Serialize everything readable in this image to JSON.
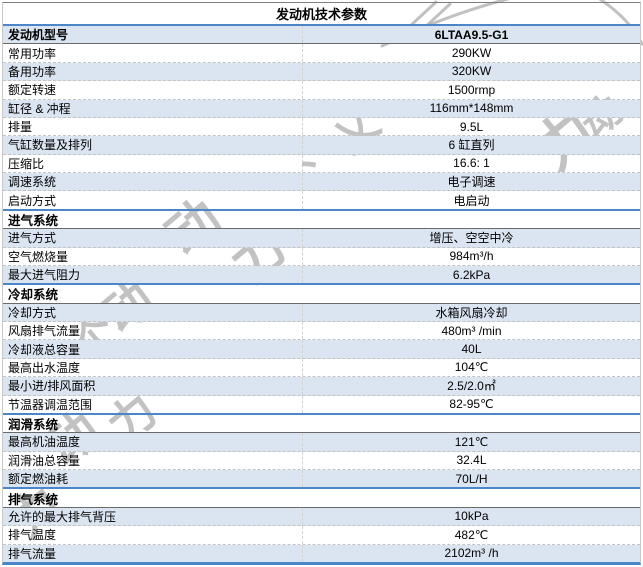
{
  "page": {
    "title": "发动机技术参数"
  },
  "colors": {
    "row_alt_bg": "#dbe5f1",
    "accent_line": "#4a86c8",
    "dashed_separator": "#c3c3c3",
    "watermark_gray": "#9e9e9e",
    "text": "#000000"
  },
  "watermark": {
    "text_fragments": [
      "动",
      "力",
      "个",
      "、",
      "乂"
    ],
    "has_circle_arc": true
  },
  "table": {
    "sections": [
      {
        "header": null,
        "rows": [
          {
            "label": "发动机型号",
            "value": "6LTAA9.5-G1",
            "emphasis": true
          },
          {
            "label": "常用功率",
            "value": "290KW"
          },
          {
            "label": "备用功率",
            "value": "320KW"
          },
          {
            "label": "额定转速",
            "value": "1500rmp"
          },
          {
            "label": "缸径 & 冲程",
            "value": "116mm*148mm"
          },
          {
            "label": "排量",
            "value": "9.5L"
          },
          {
            "label": "气缸数量及排列",
            "value": "6 缸直列"
          },
          {
            "label": "压缩比",
            "value": "16.6: 1"
          },
          {
            "label": "调速系统",
            "value": "电子调速"
          },
          {
            "label": "启动方式",
            "value": "电启动"
          }
        ]
      },
      {
        "header": "进气系统",
        "rows": [
          {
            "label": "进气方式",
            "value": "增压、空空中冷"
          },
          {
            "label": "空气燃烧量",
            "value": "984m³/h"
          },
          {
            "label": "最大进气阻力",
            "value": "6.2kPa"
          }
        ]
      },
      {
        "header": "冷却系统",
        "rows": [
          {
            "label": "冷却方式",
            "value": "水箱风扇冷却"
          },
          {
            "label": "风扇排气流量",
            "value": "480m³ /min"
          },
          {
            "label": "冷却液总容量",
            "value": "40L"
          },
          {
            "label": "最高出水温度",
            "value": "104℃"
          },
          {
            "label": "最小进/排风面积",
            "value": "2.5/2.0㎡"
          },
          {
            "label": "节温器调温范围",
            "value": "82-95℃"
          }
        ]
      },
      {
        "header": "润滑系统",
        "rows": [
          {
            "label": "最高机油温度",
            "value": "121℃"
          },
          {
            "label": "润滑油总容量",
            "value": "32.4L"
          },
          {
            "label": "额定燃油耗",
            "value": "70L/H"
          }
        ]
      },
      {
        "header": "排气系统",
        "rows": [
          {
            "label": "允许的最大排气背压",
            "value": "10kPa"
          },
          {
            "label": "排气温度",
            "value": "482℃"
          },
          {
            "label": "排气流量",
            "value": "2102m³ /h"
          }
        ]
      }
    ]
  }
}
